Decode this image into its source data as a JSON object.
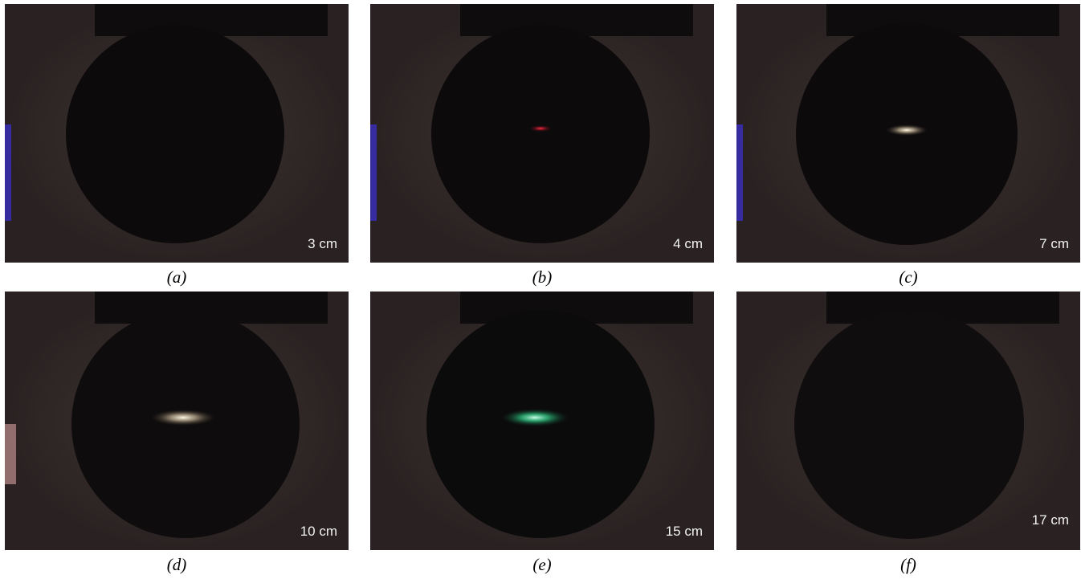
{
  "figure": {
    "panels": [
      {
        "distance": "3 cm",
        "caption": "(a)"
      },
      {
        "distance": "4 cm",
        "caption": "(b)"
      },
      {
        "distance": "7 cm",
        "caption": "(c)"
      },
      {
        "distance": "10 cm",
        "caption": "(d)"
      },
      {
        "distance": "15 cm",
        "caption": "(e)"
      },
      {
        "distance": "17 cm",
        "caption": "(f)"
      }
    ]
  }
}
